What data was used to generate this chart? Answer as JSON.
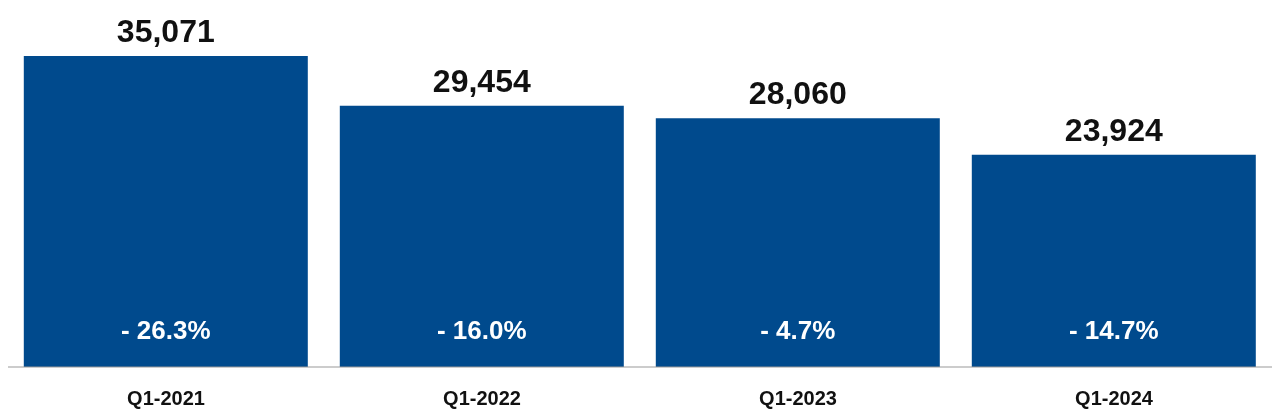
{
  "chart_data": {
    "type": "bar",
    "categories": [
      "Q1-2021",
      "Q1-2022",
      "Q1-2023",
      "Q1-2024"
    ],
    "values": [
      35071,
      29454,
      28060,
      23924
    ],
    "color": "#004a8d",
    "value_labels": [
      "35,071",
      "29,454",
      "28,060",
      "23,924"
    ],
    "grid": false,
    "legend": false,
    "annotations": [
      "- 26.3%",
      "- 16.0%",
      "- 4.7%",
      "- 14.7%"
    ]
  }
}
